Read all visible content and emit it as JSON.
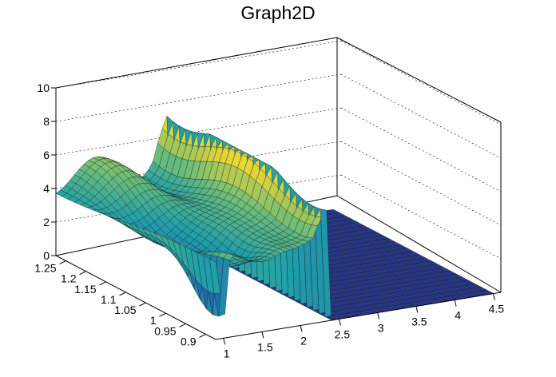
{
  "chart_data": {
    "type": "surface3d",
    "title": "Graph2D",
    "colormap": "viridis-like (blue-green-yellow)",
    "x_ticks": [
      "1",
      "1.5",
      "2",
      "2.5",
      "3",
      "3.5",
      "4",
      "4.5"
    ],
    "y_ticks": [
      "0.9",
      "0.95",
      "1",
      "1.05",
      "1.1",
      "1.15",
      "1.2",
      "1.25"
    ],
    "z_ticks": [
      "0",
      "2",
      "4",
      "6",
      "8",
      "10"
    ],
    "xlim": [
      0.9,
      4.6
    ],
    "ylim": [
      0.875,
      1.275
    ],
    "zlim": [
      0,
      10
    ],
    "grid": "dashed back planes",
    "surface": {
      "x_range": [
        0.9,
        4.5
      ],
      "y_range": [
        0.875,
        1.275
      ],
      "z_range": [
        0,
        7.5
      ],
      "notes": "Undulating surface ~3–6 over x 0.9–2.3; sharp dip to 0 near x≈1; tall wall near x≈2.3; flat 0 plane for x>2.3"
    }
  }
}
